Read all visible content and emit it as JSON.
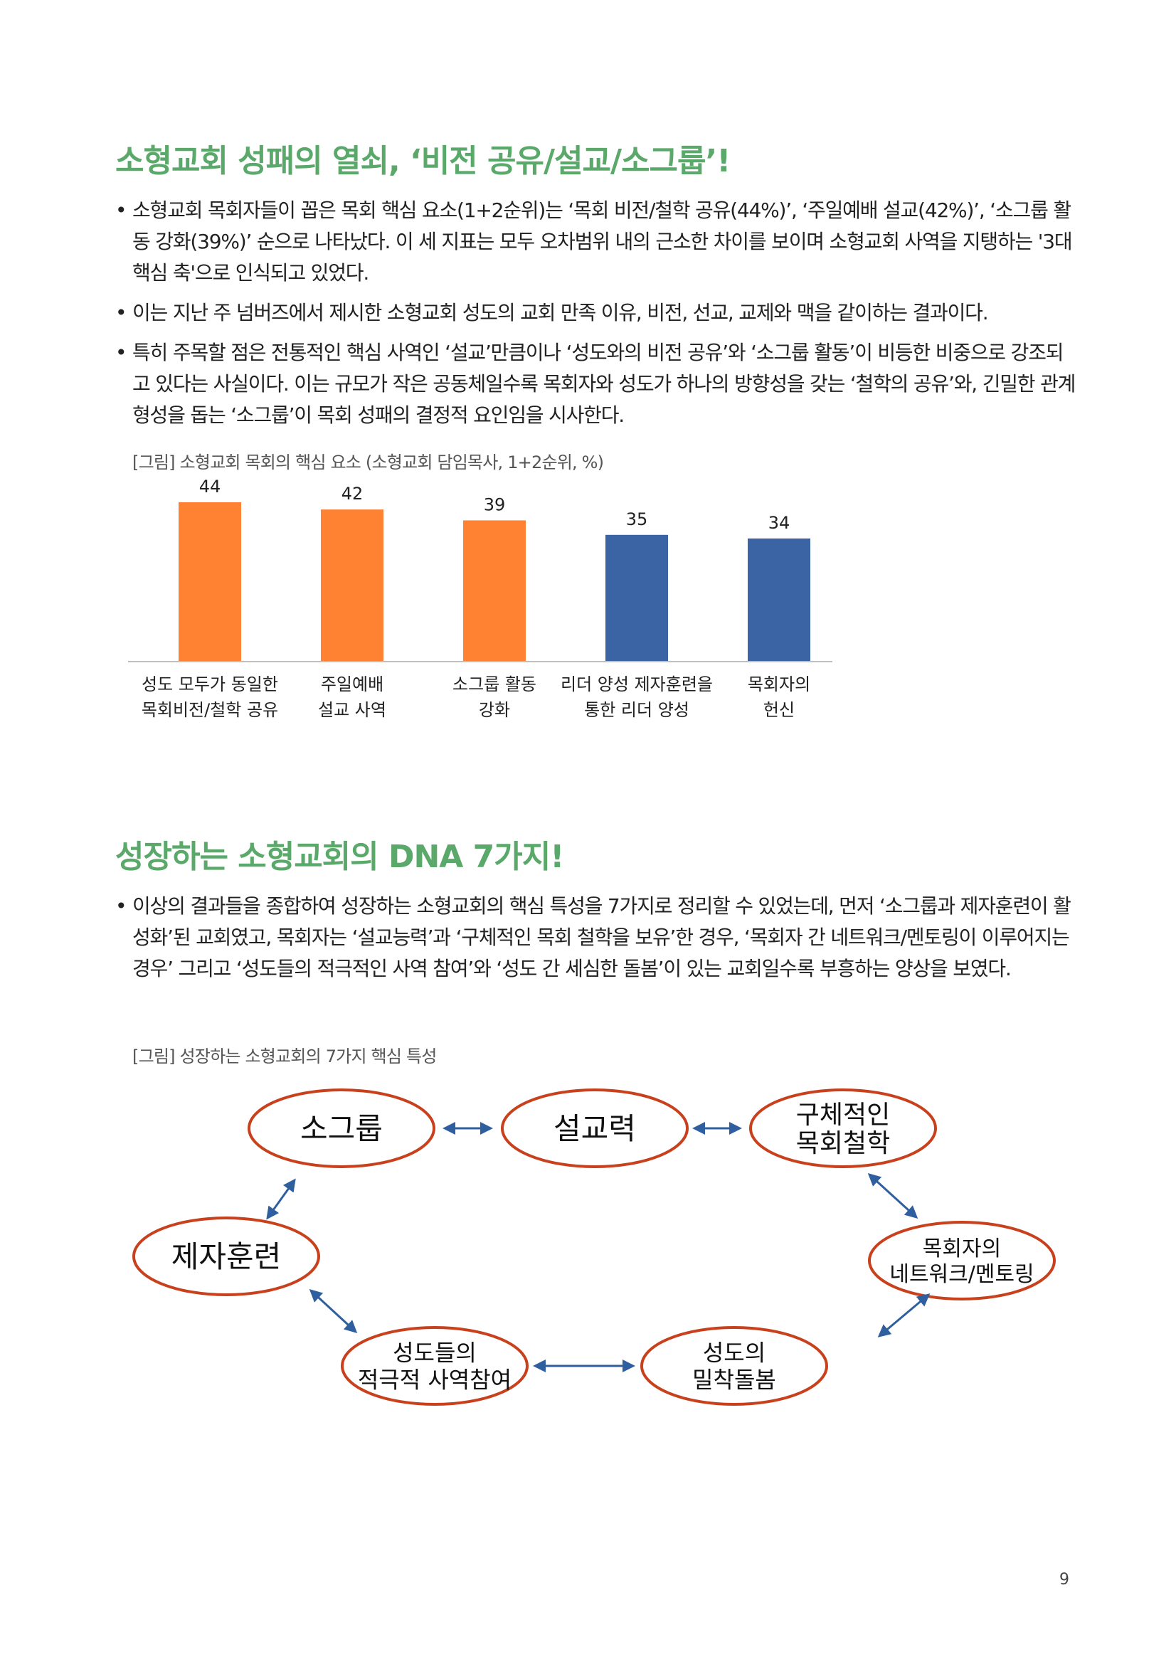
{
  "section1": {
    "heading": "소형교회 성패의 열쇠, ‘비전 공유/설교/소그룹’!",
    "bullets": [
      "소형교회 목회자들이 꼽은 목회 핵심 요소(1+2순위)는 ‘목회 비전/철학 공유(44%)’, ‘주일예배 설교(42%)’, ‘소그룹 활동 강화(39%)’ 순으로 나타났다. 이 세 지표는 모두 오차범위 내의 근소한 차이를 보이며 소형교회 사역을 지탱하는 '3대 핵심 축'으로 인식되고 있었다.",
      "이는 지난 주 넘버즈에서 제시한 소형교회 성도의 교회 만족 이유, 비전, 선교, 교제와 맥을 같이하는 결과이다.",
      "특히 주목할 점은 전통적인 핵심 사역인 ‘설교’만큼이나 ‘성도와의 비전 공유’와 ‘소그룹 활동’이 비등한 비중으로 강조되고 있다는 사실이다. 이는 규모가 작은 공동체일수록 목회자와 성도가 하나의 방향성을 갖는 ‘철학의 공유’와, 긴밀한 관계 형성을 돕는 ‘소그룹’이 목회 성패의 결정적 요인임을 시사한다."
    ],
    "figure_caption": "[그림] 소형교회 목회의 핵심 요소 (소형교회 담임목사, 1+2순위, %)"
  },
  "chart_data": {
    "type": "bar",
    "categories": [
      [
        "성도 모두가 동일한",
        "목회비전/철학 공유"
      ],
      [
        "주일예배",
        "설교 사역"
      ],
      [
        "소그룹 활동",
        "강화"
      ],
      [
        "리더 양성 제자훈련을",
        "통한 리더 양성"
      ],
      [
        "목회자의",
        "헌신"
      ]
    ],
    "values": [
      44,
      42,
      39,
      35,
      34
    ],
    "colors": [
      "#ff8233",
      "#ff8233",
      "#ff8233",
      "#3a64a4",
      "#3a64a4"
    ],
    "ylim": [
      0,
      44
    ],
    "grid": false
  },
  "section2": {
    "heading": "성장하는 소형교회의 DNA 7가지!",
    "bullets": [
      "이상의 결과들을 종합하여 성장하는 소형교회의 핵심 특성을 7가지로 정리할 수 있었는데, 먼저 ‘소그룹과 제자훈련이 활성화’된 교회였고, 목회자는 ‘설교능력’과 ‘구체적인 목회 철학을 보유’한 경우, ‘목회자 간 네트워크/멘토링이 이루어지는 경우’ 그리고 ‘성도들의 적극적인 사역 참여’와 ‘성도 간 세심한 돌봄’이 있는 교회일수록 부흥하는 양상을 보였다."
    ],
    "figure_caption": "[그림] 성장하는 소형교회의 7가지 핵심 특성"
  },
  "diagram": {
    "nodes": [
      {
        "id": "small-group",
        "lines": [
          "소그룹"
        ]
      },
      {
        "id": "preaching",
        "lines": [
          "설교력"
        ]
      },
      {
        "id": "philosophy",
        "lines": [
          "구체적인",
          "목회철학"
        ]
      },
      {
        "id": "discipleship",
        "lines": [
          "제자훈련"
        ]
      },
      {
        "id": "network",
        "lines": [
          "목회자의",
          "네트워크/멘토링"
        ]
      },
      {
        "id": "participation",
        "lines": [
          "성도들의",
          "적극적 사역참여"
        ]
      },
      {
        "id": "care",
        "lines": [
          "성도의",
          "밀착돌봄"
        ]
      }
    ],
    "ellipse_stroke": "#c8401c",
    "arrow_color": "#2f5f9e"
  },
  "page_number": "9"
}
